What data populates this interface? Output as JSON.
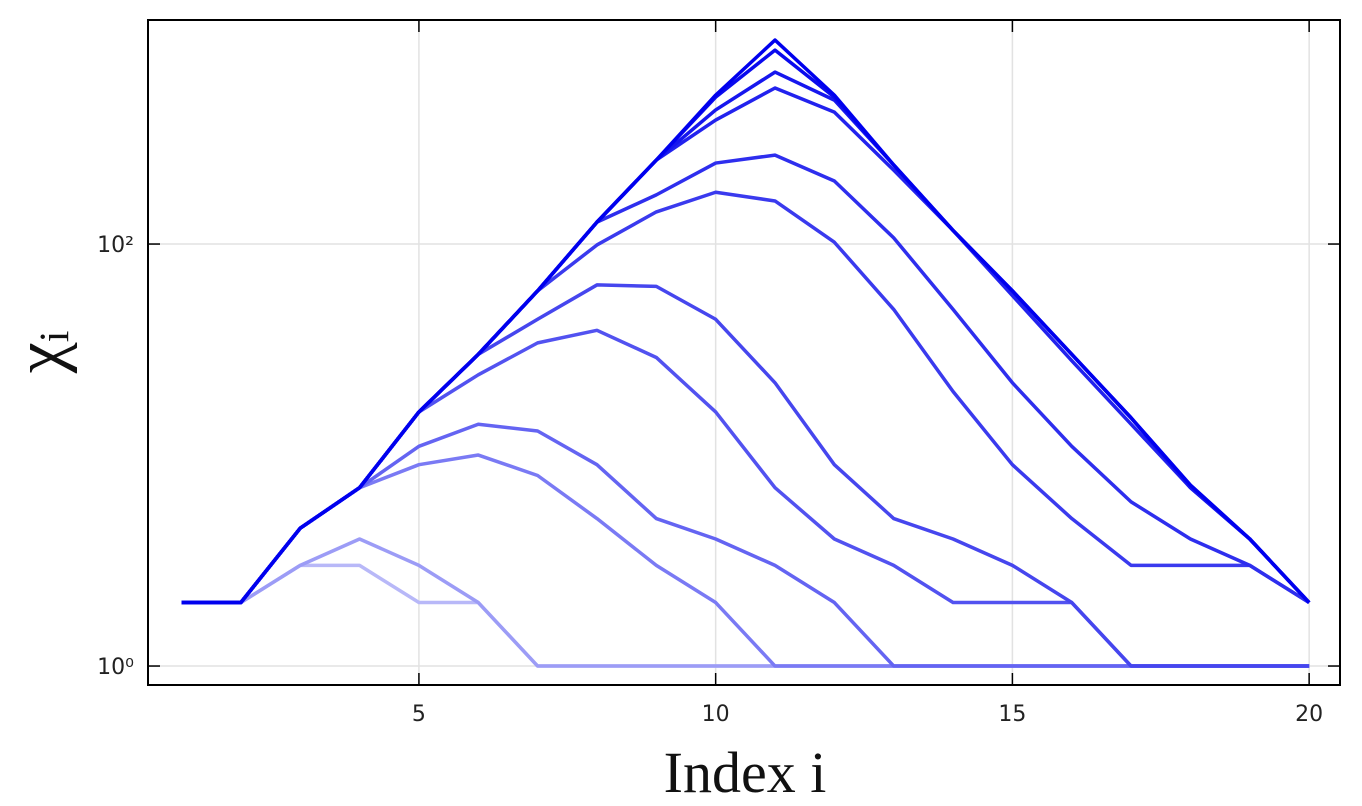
{
  "chart_data": {
    "type": "line",
    "xlabel": "Index i",
    "ylabel": "χᵢ",
    "x": [
      1,
      2,
      3,
      4,
      5,
      6,
      7,
      8,
      9,
      10,
      11,
      12,
      13,
      14,
      15,
      16,
      17,
      18,
      19,
      20
    ],
    "xlim": [
      0.435,
      20.52
    ],
    "xticks": [
      5,
      10,
      15,
      20
    ],
    "ylim": [
      0.813,
      1153
    ],
    "yticks": [
      {
        "value": 1,
        "label": "10⁰"
      },
      {
        "value": 100,
        "label": "10²"
      }
    ],
    "log_y": true,
    "grid": true,
    "series": [
      {
        "color": "#b8b8f8",
        "values": [
          2,
          2,
          3,
          3,
          2,
          2,
          1,
          1,
          1,
          1,
          1,
          1,
          1,
          1,
          1,
          1,
          1,
          1,
          1,
          1
        ]
      },
      {
        "color": "#9c9cf6",
        "values": [
          2,
          2,
          3,
          4,
          3,
          2,
          1,
          1,
          1,
          1,
          1,
          1,
          1,
          1,
          1,
          1,
          1,
          1,
          1,
          1
        ]
      },
      {
        "color": "#7a7af4",
        "values": [
          2,
          2,
          4.5,
          7,
          9,
          10,
          8,
          5,
          3,
          2,
          1,
          1,
          1,
          1,
          1,
          1,
          1,
          1,
          1,
          1
        ]
      },
      {
        "color": "#6464f2",
        "values": [
          2,
          2,
          4.5,
          7,
          11,
          14,
          13,
          9,
          5,
          4,
          3,
          2,
          1,
          1,
          1,
          1,
          1,
          1,
          1,
          1
        ]
      },
      {
        "color": "#5252f0",
        "values": [
          2,
          2,
          4.5,
          7,
          16,
          24,
          34,
          39,
          29,
          16,
          7,
          4,
          3,
          2,
          2,
          2,
          1,
          1,
          1,
          1
        ]
      },
      {
        "color": "#4646ee",
        "values": [
          2,
          2,
          4.5,
          7,
          16,
          30,
          44,
          64,
          63,
          44,
          22,
          9,
          5,
          4,
          3,
          2,
          1,
          1,
          1,
          1
        ]
      },
      {
        "color": "#3a3aee",
        "values": [
          2,
          2,
          4.5,
          7,
          16,
          30,
          60,
          99,
          142,
          176,
          160,
          102,
          49,
          20,
          9,
          5,
          3,
          3,
          3,
          2
        ]
      },
      {
        "color": "#2e2eee",
        "values": [
          2,
          2,
          4.5,
          7,
          16,
          30,
          60,
          127,
          171,
          242,
          264,
          199,
          107,
          49,
          22,
          11,
          6,
          4,
          3,
          2
        ]
      },
      {
        "color": "#2222ee",
        "values": [
          2,
          2,
          4.5,
          7,
          16,
          30,
          60,
          127,
          250,
          387,
          549,
          422,
          224,
          116,
          57,
          28,
          14,
          7,
          4,
          2
        ]
      },
      {
        "color": "#1616ee",
        "values": [
          2,
          2,
          4.5,
          7,
          16,
          30,
          60,
          127,
          250,
          432,
          653,
          481,
          237,
          116,
          60,
          30,
          15,
          7,
          4,
          2
        ]
      },
      {
        "color": "#0a0aee",
        "values": [
          2,
          2,
          4.5,
          7,
          16,
          30,
          60,
          127,
          250,
          497,
          830,
          497,
          237,
          116,
          60,
          30,
          15,
          7.2,
          4,
          2
        ]
      },
      {
        "color": "#0000ee",
        "values": [
          2,
          2,
          4.5,
          7,
          16,
          30,
          60,
          127,
          250,
          508,
          926,
          508,
          237,
          116,
          60,
          30,
          15,
          7.2,
          4,
          2
        ]
      }
    ]
  }
}
